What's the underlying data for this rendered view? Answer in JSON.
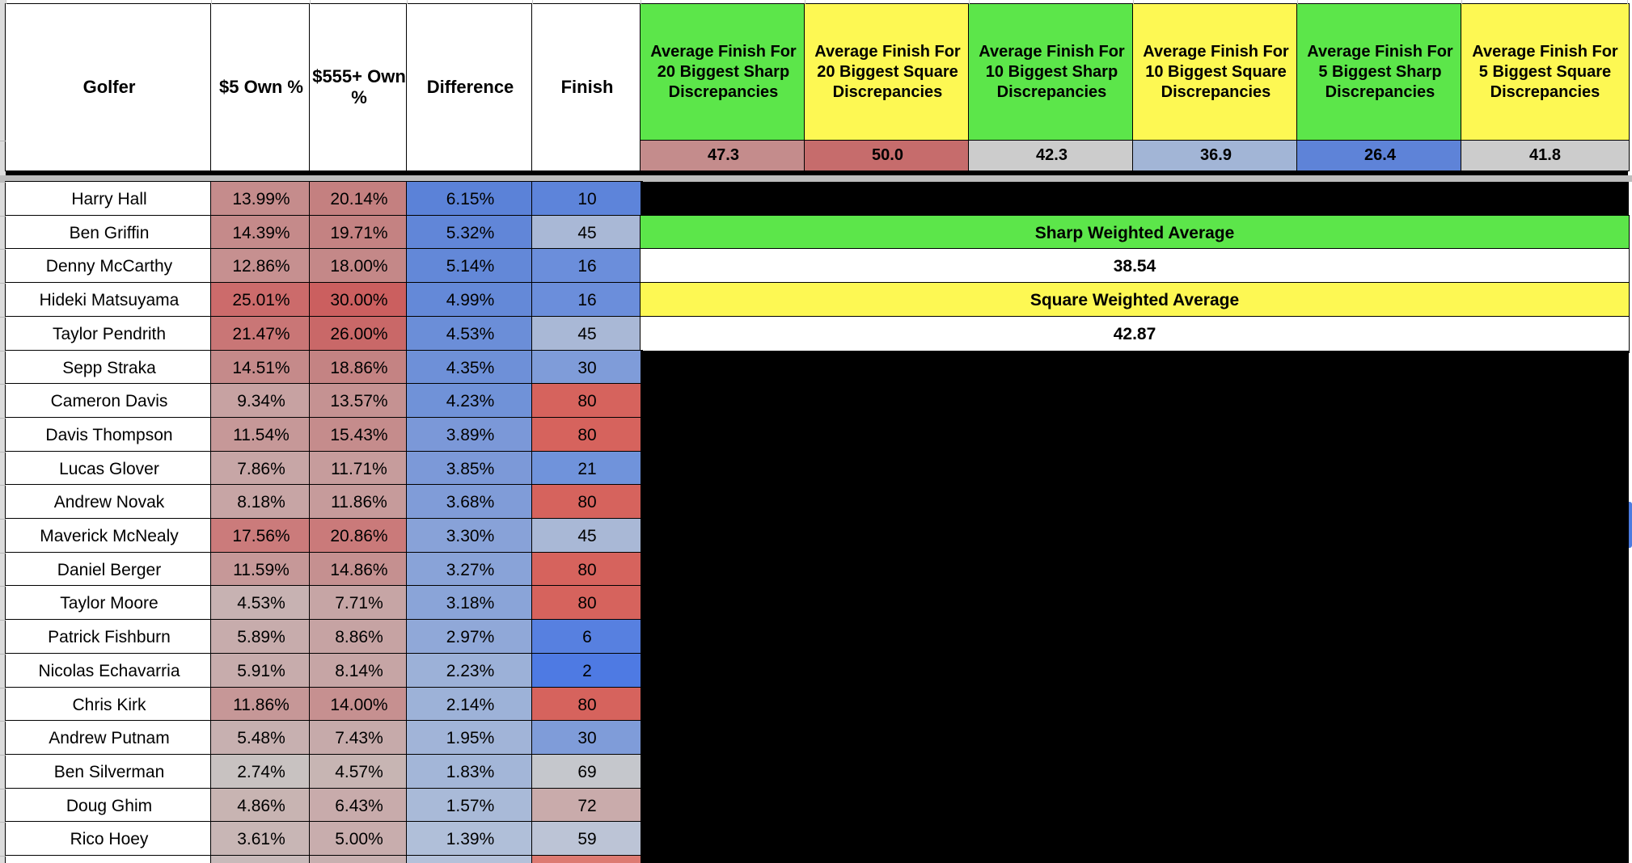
{
  "sheet": {
    "columns": [
      {
        "key": "golfer",
        "label": "Golfer"
      },
      {
        "key": "own5",
        "label": "$5 Own %"
      },
      {
        "key": "own555",
        "label": "$555+ Own %"
      },
      {
        "key": "diff",
        "label": "Difference"
      },
      {
        "key": "finish",
        "label": "Finish"
      }
    ],
    "metric_columns": [
      {
        "label": "Average Finish For 20 Biggest Sharp Discrepancies",
        "header_color": "#5ce64a",
        "value": "47.3",
        "value_color": "#c48c8c"
      },
      {
        "label": "Average Finish For 20 Biggest Square Discrepancies",
        "header_color": "#fdf853",
        "value": "50.0",
        "value_color": "#c66c6c"
      },
      {
        "label": "Average Finish For 10 Biggest Sharp Discrepancies",
        "header_color": "#5ce64a",
        "value": "42.3",
        "value_color": "#cccccc"
      },
      {
        "label": "Average Finish For 10 Biggest Square Discrepancies",
        "header_color": "#fdf853",
        "value": "36.9",
        "value_color": "#a2b5d6"
      },
      {
        "label": "Average Finish For 5 Biggest Sharp Discrepancies",
        "header_color": "#5ce64a",
        "value": "26.4",
        "value_color": "#5e83d8"
      },
      {
        "label": "Average Finish For 5 Biggest Square Discrepancies",
        "header_color": "#fdf853",
        "value": "41.8",
        "value_color": "#cccccc"
      }
    ],
    "summary": {
      "sharp_label": "Sharp Weighted Average",
      "sharp_value": "38.54",
      "sharp_color": "#5ce64a",
      "square_label": "Square Weighted Average",
      "square_value": "42.87",
      "square_color": "#fdf853"
    },
    "rows": [
      {
        "golfer": "Harry Hall",
        "own5": "13.99%",
        "own555": "20.14%",
        "diff": "6.15%",
        "finish": "10",
        "colors": {
          "own5": "#c58c8c",
          "own555": "#c48080",
          "diff": "#5b82d8",
          "finish": "#5d84da"
        }
      },
      {
        "golfer": "Ben Griffin",
        "own5": "14.39%",
        "own555": "19.71%",
        "diff": "5.32%",
        "finish": "45",
        "colors": {
          "own5": "#c58a8a",
          "own555": "#c48282",
          "diff": "#6186d8",
          "finish": "#a9b8d6"
        }
      },
      {
        "golfer": "Denny McCarthy",
        "own5": "12.86%",
        "own555": "18.00%",
        "diff": "5.14%",
        "finish": "16",
        "colors": {
          "own5": "#c69090",
          "own555": "#c48888",
          "diff": "#6388d8",
          "finish": "#6b8edb"
        }
      },
      {
        "golfer": "Hideki Matsuyama",
        "own5": "25.01%",
        "own555": "30.00%",
        "diff": "4.99%",
        "finish": "16",
        "colors": {
          "own5": "#cc6b6b",
          "own555": "#cb5f5f",
          "diff": "#6489d8",
          "finish": "#6b8edb"
        }
      },
      {
        "golfer": "Taylor Pendrith",
        "own5": "21.47%",
        "own555": "26.00%",
        "diff": "4.53%",
        "finish": "45",
        "colors": {
          "own5": "#c97676",
          "own555": "#c96868",
          "diff": "#6b8ed8",
          "finish": "#a9b8d6"
        }
      },
      {
        "golfer": "Sepp Straka",
        "own5": "14.51%",
        "own555": "18.86%",
        "diff": "4.35%",
        "finish": "30",
        "colors": {
          "own5": "#c58a8a",
          "own555": "#c48383",
          "diff": "#6e90d8",
          "finish": "#7f9cd9"
        }
      },
      {
        "golfer": "Cameron Davis",
        "own5": "9.34%",
        "own555": "13.57%",
        "diff": "4.23%",
        "finish": "80",
        "colors": {
          "own5": "#c7a2a2",
          "own555": "#c59292",
          "diff": "#7092d8",
          "finish": "#d6635d"
        }
      },
      {
        "golfer": "Davis Thompson",
        "own5": "11.54%",
        "own555": "15.43%",
        "diff": "3.89%",
        "finish": "80",
        "colors": {
          "own5": "#c69898",
          "own555": "#c58c8c",
          "diff": "#7b98d8",
          "finish": "#d6635d"
        }
      },
      {
        "golfer": "Lucas Glover",
        "own5": "7.86%",
        "own555": "11.71%",
        "diff": "3.85%",
        "finish": "21",
        "colors": {
          "own5": "#c7a6a6",
          "own555": "#c69c9c",
          "diff": "#7c99d8",
          "finish": "#7093db"
        }
      },
      {
        "golfer": "Andrew Novak",
        "own5": "8.18%",
        "own555": "11.86%",
        "diff": "3.68%",
        "finish": "80",
        "colors": {
          "own5": "#c7a5a5",
          "own555": "#c69b9b",
          "diff": "#809cd8",
          "finish": "#d6635d"
        }
      },
      {
        "golfer": "Maverick McNealy",
        "own5": "17.56%",
        "own555": "20.86%",
        "diff": "3.30%",
        "finish": "45",
        "colors": {
          "own5": "#cb7b7b",
          "own555": "#ca7a7a",
          "diff": "#88a2d8",
          "finish": "#a9b8d6"
        }
      },
      {
        "golfer": "Daniel Berger",
        "own5": "11.59%",
        "own555": "14.86%",
        "diff": "3.27%",
        "finish": "80",
        "colors": {
          "own5": "#c69898",
          "own555": "#c59090",
          "diff": "#89a3d8",
          "finish": "#d6635d"
        }
      },
      {
        "golfer": "Taylor Moore",
        "own5": "4.53%",
        "own555": "7.71%",
        "diff": "3.18%",
        "finish": "80",
        "colors": {
          "own5": "#c7b2b2",
          "own555": "#c6a5a5",
          "diff": "#8aa4d8",
          "finish": "#d6635d"
        }
      },
      {
        "golfer": "Patrick Fishburn",
        "own5": "5.89%",
        "own555": "8.86%",
        "diff": "2.97%",
        "finish": "6",
        "colors": {
          "own5": "#c7acac",
          "own555": "#c6a3a3",
          "diff": "#90a8d8",
          "finish": "#5780e0"
        }
      },
      {
        "golfer": "Nicolas Echavarria",
        "own5": "5.91%",
        "own555": "8.14%",
        "diff": "2.23%",
        "finish": "2",
        "colors": {
          "own5": "#c7acac",
          "own555": "#c6a5a5",
          "diff": "#9cb1d8",
          "finish": "#4e7ae3"
        }
      },
      {
        "golfer": "Chris Kirk",
        "own5": "11.86%",
        "own555": "14.00%",
        "diff": "2.14%",
        "finish": "80",
        "colors": {
          "own5": "#c69797",
          "own555": "#c69090",
          "diff": "#9db2d8",
          "finish": "#d6635d"
        }
      },
      {
        "golfer": "Andrew Putnam",
        "own5": "5.48%",
        "own555": "7.43%",
        "diff": "1.95%",
        "finish": "30",
        "colors": {
          "own5": "#c7b0b0",
          "own555": "#c6aaaa",
          "diff": "#a1b4d8",
          "finish": "#7f9cd9"
        }
      },
      {
        "golfer": "Ben Silverman",
        "own5": "2.74%",
        "own555": "4.57%",
        "diff": "1.83%",
        "finish": "69",
        "colors": {
          "own5": "#c8c2c1",
          "own555": "#c7b5b3",
          "diff": "#a3b6d8",
          "finish": "#c5c7cc"
        }
      },
      {
        "golfer": "Doug Ghim",
        "own5": "4.86%",
        "own555": "6.43%",
        "diff": "1.57%",
        "finish": "72",
        "colors": {
          "own5": "#c8b4b2",
          "own555": "#c8abab",
          "diff": "#a9bad8",
          "finish": "#c9abab"
        }
      },
      {
        "golfer": "Rico Hoey",
        "own5": "3.61%",
        "own555": "5.00%",
        "diff": "1.39%",
        "finish": "59",
        "colors": {
          "own5": "#c8b6b5",
          "own555": "#c8adad",
          "diff": "#b0bfd9",
          "finish": "#bcc4d6"
        }
      }
    ],
    "partial_row_colors": {
      "own5": "#c8baba",
      "own555": "#c8b0b0",
      "diff": "#b4c1da",
      "finish": "#dd7a72"
    },
    "colors": {
      "black": "#000000",
      "divider": "#bdbdbd",
      "left_strip": "#dcdcdc",
      "scrollbar": "#4b7be0",
      "header_bg": "#ffffff"
    }
  }
}
